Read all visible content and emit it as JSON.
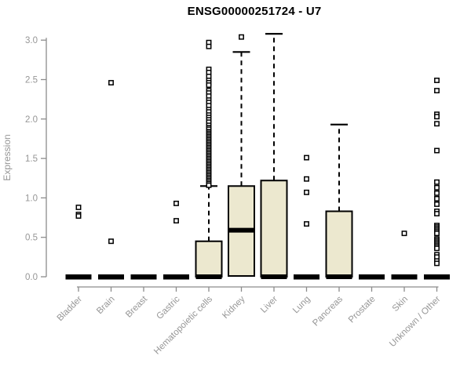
{
  "chart_data": {
    "type": "boxplot",
    "title": "ENSG00000251724 - U7",
    "xlabel": "",
    "ylabel": "Expression",
    "ylim": [
      -0.14,
      3.18
    ],
    "yticks": [
      0.0,
      0.5,
      1.0,
      1.5,
      2.0,
      2.5,
      3.0
    ],
    "grid": false,
    "legend": "none",
    "categories": [
      "Bladder",
      "Brain",
      "Breast",
      "Gastric",
      "Hematopoietic cells",
      "Kidney",
      "Liver",
      "Lung",
      "Pancreas",
      "Prostate",
      "Skin",
      "Unknown / Other"
    ],
    "series": [
      {
        "category": "Bladder",
        "q1": 0,
        "median": 0,
        "q3": 0,
        "whisker_low": 0,
        "whisker_high": 0,
        "outliers": [
          0.88,
          0.79,
          0.77
        ]
      },
      {
        "category": "Brain",
        "q1": 0,
        "median": 0,
        "q3": 0,
        "whisker_low": 0,
        "whisker_high": 0,
        "outliers": [
          2.46,
          0.45
        ]
      },
      {
        "category": "Breast",
        "q1": 0,
        "median": 0,
        "q3": 0,
        "whisker_low": 0,
        "whisker_high": 0,
        "outliers": []
      },
      {
        "category": "Gastric",
        "q1": 0,
        "median": 0,
        "q3": 0,
        "whisker_low": 0,
        "whisker_high": 0,
        "outliers": [
          0.93,
          0.71
        ]
      },
      {
        "category": "Hematopoietic cells",
        "q1": 0,
        "median": 0,
        "q3": 0.45,
        "whisker_low": 0,
        "whisker_high": 1.15,
        "outliers": [
          2.97,
          2.92,
          2.63,
          2.59,
          2.54,
          2.49,
          2.46,
          2.43,
          2.36,
          2.33,
          2.29,
          2.24,
          2.21,
          2.17,
          2.12,
          2.09,
          2.05,
          2.02,
          1.99,
          1.96,
          1.92,
          1.89,
          1.87,
          1.84,
          1.82,
          1.8,
          1.78,
          1.76,
          1.74,
          1.72,
          1.7,
          1.68,
          1.66,
          1.64,
          1.62,
          1.6,
          1.58,
          1.56,
          1.54,
          1.52,
          1.5,
          1.48,
          1.46,
          1.44,
          1.42,
          1.4,
          1.38,
          1.36,
          1.34,
          1.32,
          1.3,
          1.28,
          1.26,
          1.24,
          1.22,
          1.2,
          1.18,
          1.16
        ]
      },
      {
        "category": "Kidney",
        "q1": 0.01,
        "median": 0.59,
        "q3": 1.15,
        "whisker_low": 0.01,
        "whisker_high": 2.85,
        "outliers": [
          3.04
        ]
      },
      {
        "category": "Liver",
        "q1": 0,
        "median": 0,
        "q3": 1.22,
        "whisker_low": 0,
        "whisker_high": 3.08,
        "outliers": []
      },
      {
        "category": "Lung",
        "q1": 0,
        "median": 0,
        "q3": 0,
        "whisker_low": 0,
        "whisker_high": 0,
        "outliers": [
          1.51,
          1.24,
          1.07,
          0.67
        ]
      },
      {
        "category": "Pancreas",
        "q1": 0,
        "median": 0,
        "q3": 0.83,
        "whisker_low": 0,
        "whisker_high": 1.93,
        "outliers": []
      },
      {
        "category": "Prostate",
        "q1": 0,
        "median": 0,
        "q3": 0,
        "whisker_low": 0,
        "whisker_high": 0,
        "outliers": []
      },
      {
        "category": "Skin",
        "q1": 0,
        "median": 0,
        "q3": 0,
        "whisker_low": 0,
        "whisker_high": 0,
        "outliers": [
          0.55
        ]
      },
      {
        "category": "Unknown / Other",
        "q1": 0,
        "median": 0,
        "q3": 0,
        "whisker_low": 0,
        "whisker_high": 0,
        "outliers": [
          2.49,
          2.36,
          2.06,
          2.03,
          1.94,
          1.6,
          1.2,
          1.13,
          1.06,
          0.99,
          0.92,
          0.83,
          0.8,
          0.65,
          0.63,
          0.61,
          0.59,
          0.57,
          0.55,
          0.48,
          0.46,
          0.44,
          0.42,
          0.4,
          0.38,
          0.36,
          0.28,
          0.25,
          0.2,
          0.17
        ]
      }
    ],
    "colors": {
      "box_fill": "#ece8cf",
      "box_border": "#000000",
      "median_color": "#000000",
      "whisker_color": "#000000",
      "outlier_color": "#000000",
      "axis_color": "#8c8c8c",
      "tick_label_color": "#969696",
      "title_color": "#000000"
    }
  }
}
